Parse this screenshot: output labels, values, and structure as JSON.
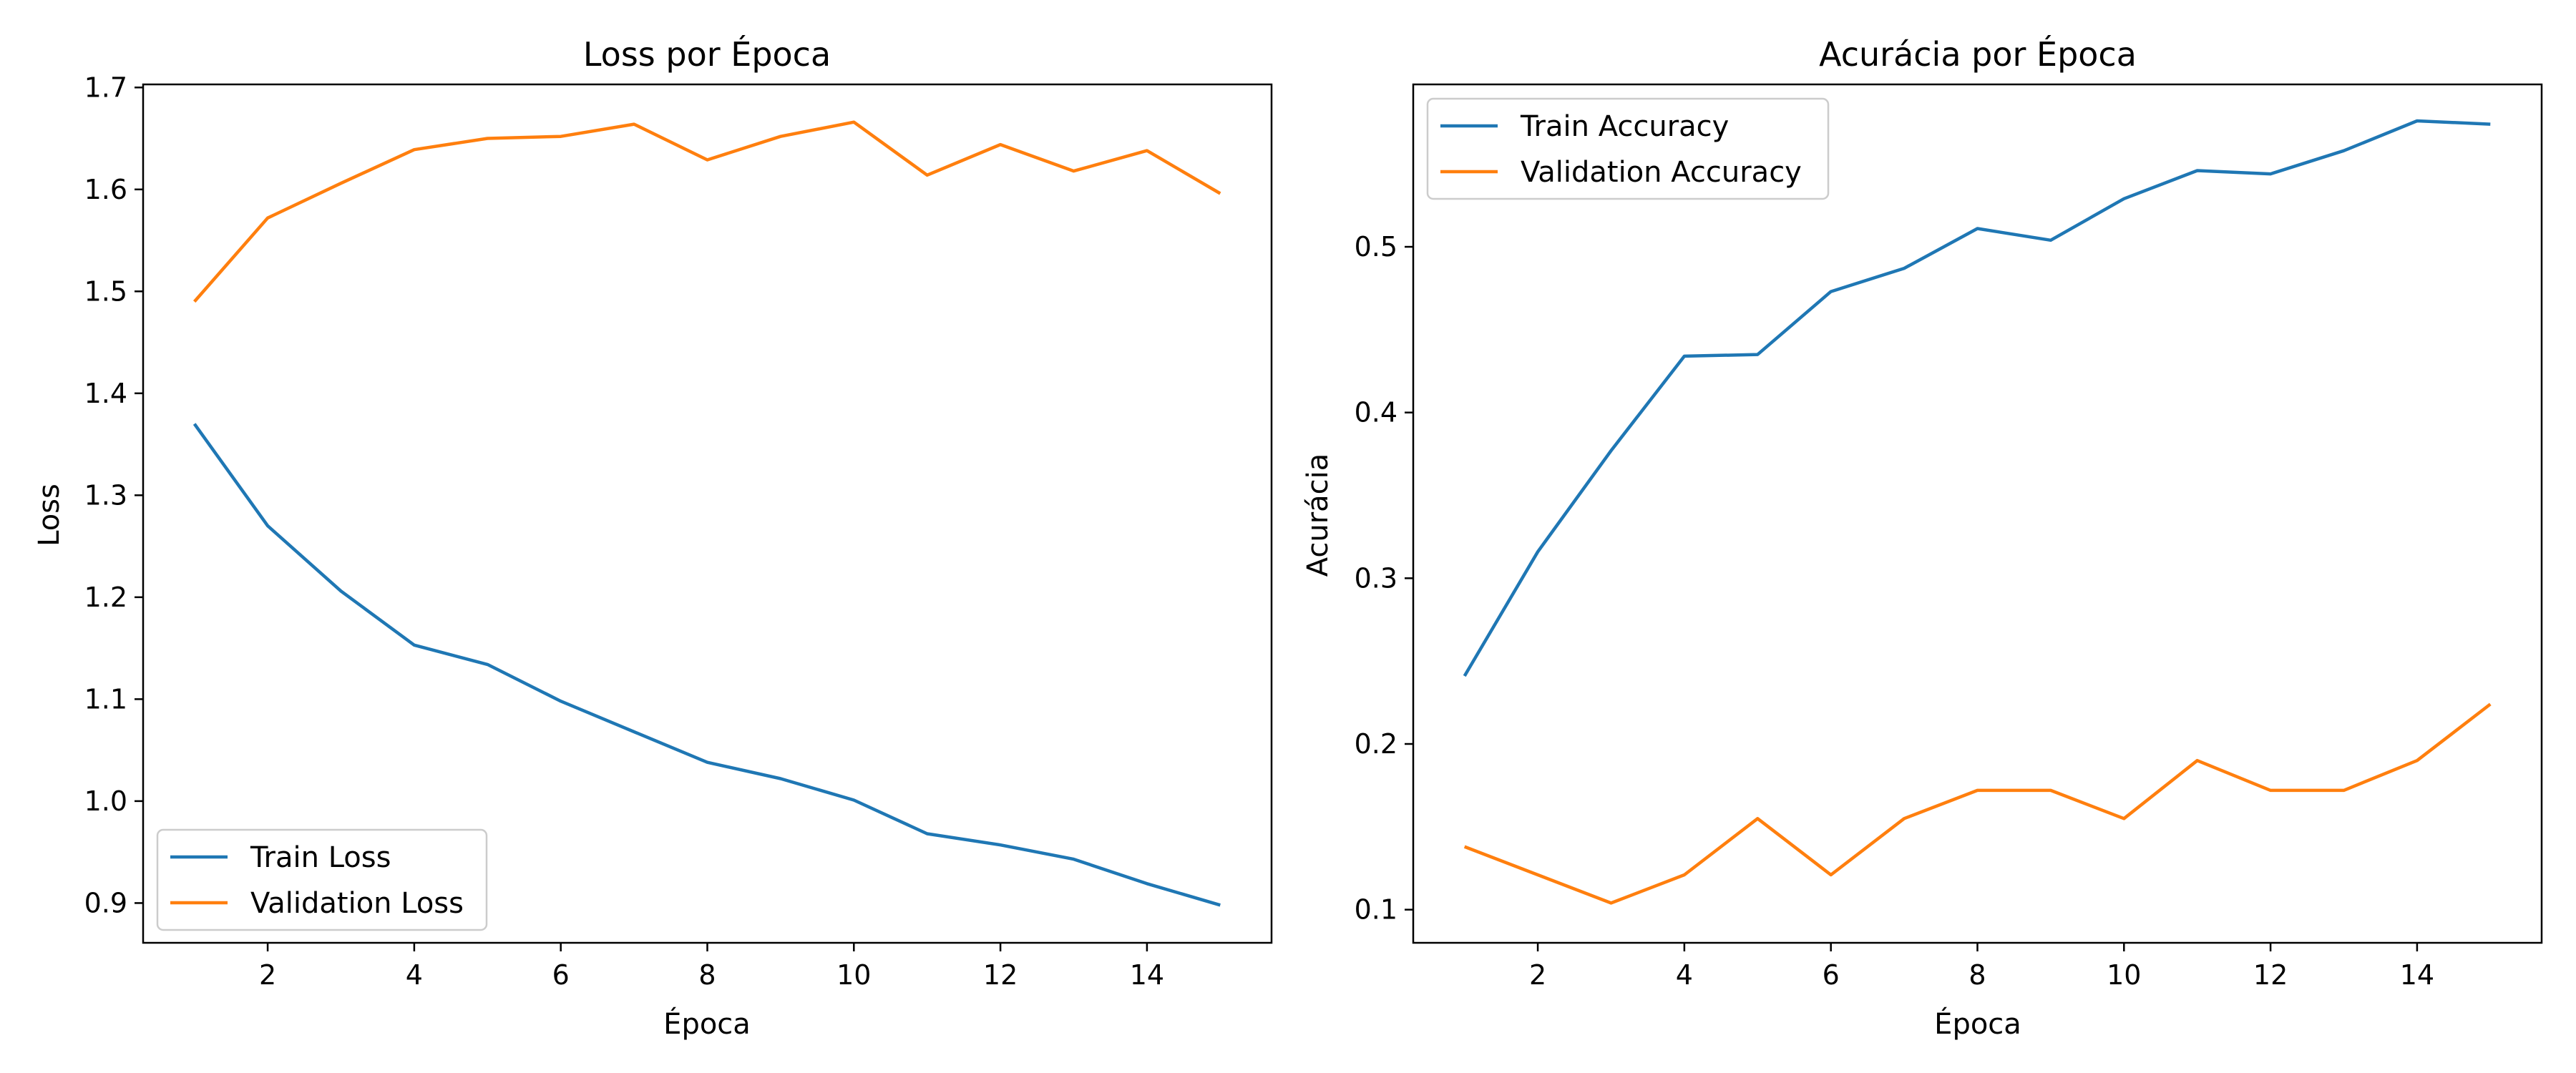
{
  "colors": {
    "train": "#1f77b4",
    "validation": "#ff7f0e",
    "axis": "#000000",
    "background": "#ffffff"
  },
  "chart_data": [
    {
      "type": "line",
      "title": "Loss por Época",
      "xlabel": "Época",
      "ylabel": "Loss",
      "x": [
        1,
        2,
        3,
        4,
        5,
        6,
        7,
        8,
        9,
        10,
        11,
        12,
        13,
        14,
        15
      ],
      "xlim": [
        0.3,
        15.7
      ],
      "ylim": [
        0.861,
        1.703
      ],
      "xticks": [
        2,
        4,
        6,
        8,
        10,
        12,
        14
      ],
      "yticks": [
        0.9,
        1.0,
        1.1,
        1.2,
        1.3,
        1.4,
        1.5,
        1.6,
        1.7
      ],
      "grid": false,
      "legend_position": "lower-left",
      "series": [
        {
          "name": "Train Loss",
          "color_key": "train",
          "values": [
            1.37,
            1.27,
            1.206,
            1.153,
            1.134,
            1.098,
            1.068,
            1.038,
            1.022,
            1.001,
            0.968,
            0.957,
            0.943,
            0.919,
            0.898
          ]
        },
        {
          "name": "Validation Loss",
          "color_key": "validation",
          "values": [
            1.49,
            1.572,
            1.606,
            1.639,
            1.65,
            1.652,
            1.664,
            1.629,
            1.652,
            1.666,
            1.614,
            1.644,
            1.618,
            1.638,
            1.596
          ]
        }
      ]
    },
    {
      "type": "line",
      "title": "Acurácia por Época",
      "xlabel": "Época",
      "ylabel": "Acurácia",
      "x": [
        1,
        2,
        3,
        4,
        5,
        6,
        7,
        8,
        9,
        10,
        11,
        12,
        13,
        14,
        15
      ],
      "xlim": [
        0.3,
        15.7
      ],
      "ylim": [
        0.08,
        0.598
      ],
      "xticks": [
        2,
        4,
        6,
        8,
        10,
        12,
        14
      ],
      "yticks": [
        0.1,
        0.2,
        0.3,
        0.4,
        0.5
      ],
      "grid": false,
      "legend_position": "upper-left",
      "series": [
        {
          "name": "Train Accuracy",
          "color_key": "train",
          "values": [
            0.241,
            0.316,
            0.377,
            0.434,
            0.435,
            0.473,
            0.487,
            0.511,
            0.504,
            0.529,
            0.546,
            0.544,
            0.558,
            0.576,
            0.574
          ]
        },
        {
          "name": "Validation Accuracy",
          "color_key": "validation",
          "values": [
            0.138,
            0.121,
            0.104,
            0.121,
            0.155,
            0.121,
            0.155,
            0.172,
            0.172,
            0.155,
            0.19,
            0.172,
            0.172,
            0.19,
            0.224
          ]
        }
      ]
    }
  ]
}
